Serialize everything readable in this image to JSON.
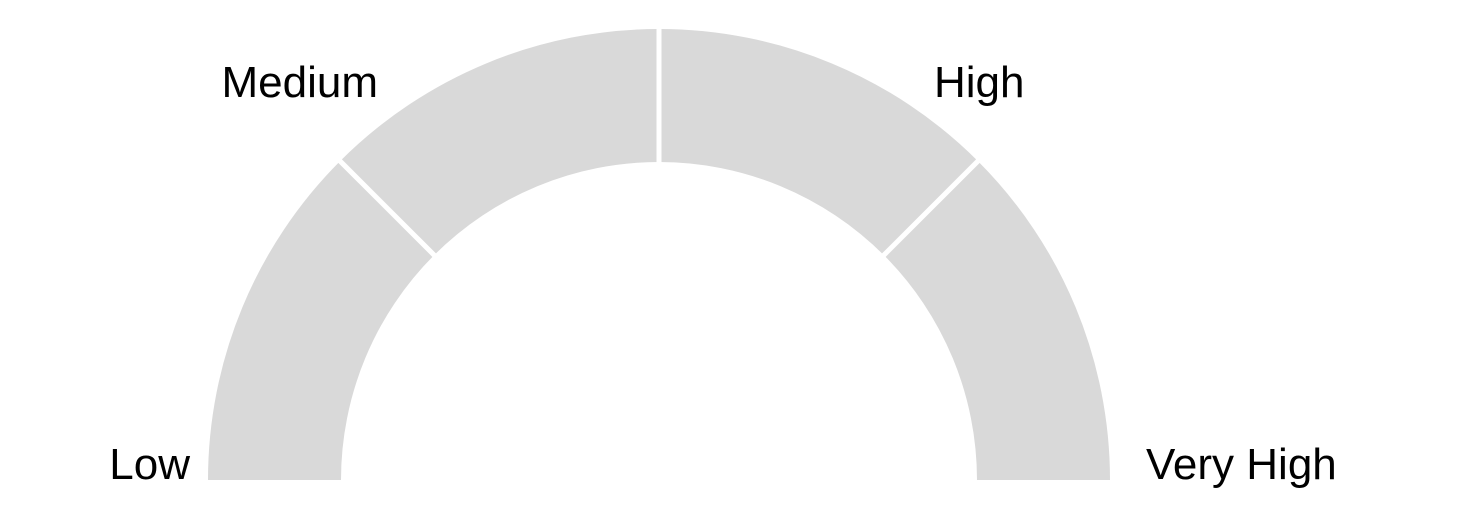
{
  "chart_data": {
    "type": "gauge",
    "title": "",
    "segments": [
      {
        "label": "Low",
        "from": 0,
        "to": 1
      },
      {
        "label": "Medium",
        "from": 1,
        "to": 2
      },
      {
        "label": "High",
        "from": 2,
        "to": 3
      },
      {
        "label": "Very High",
        "from": 3,
        "to": 4
      }
    ],
    "tick_labels": [
      "Low",
      "Medium",
      "High",
      "Very High"
    ],
    "range": [
      0,
      4
    ],
    "band_color": "#d9d9d9",
    "separator_color": "#ffffff",
    "value": null
  }
}
